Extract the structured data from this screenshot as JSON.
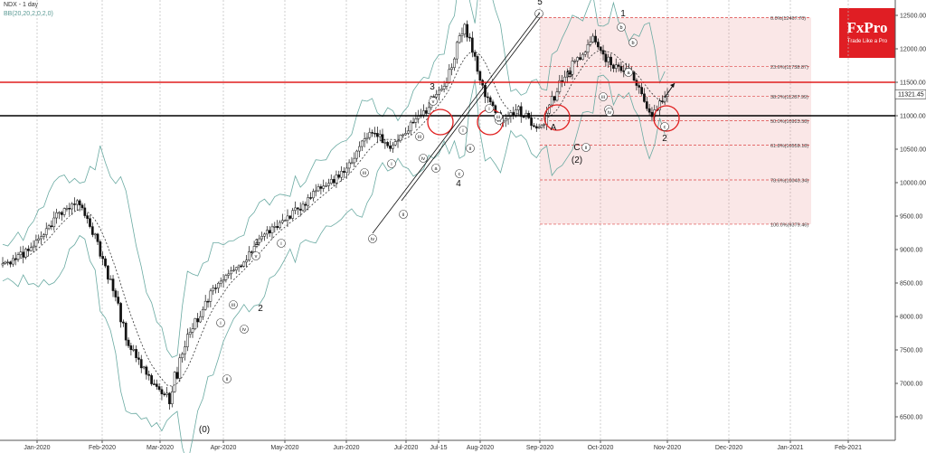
{
  "header": {
    "symbol_timeframe": "NDX - 1 day",
    "indicator": "BB(20,20,2,0,2,0)"
  },
  "logo": {
    "brand": "FxPro",
    "tagline": "Trade Like a Pro"
  },
  "chart_data": {
    "type": "candlestick",
    "ylim": [
      6300,
      12700
    ],
    "yticks": [
      "12500.00",
      "12000.00",
      "11500.00",
      "11000.00",
      "10500.00",
      "10000.00",
      "9500.00",
      "9000.00",
      "8500.00",
      "8000.00",
      "7500.00",
      "7000.00",
      "6500.00"
    ],
    "xticks": [
      "Jan-2020",
      "Feb-2020",
      "Mar-2020",
      "Apr-2020",
      "May-2020",
      "Jun-2020",
      "Jul-2020",
      "Jul-15",
      "Aug-2020",
      "Sep-2020",
      "Oct-2020",
      "Nov-2020",
      "Dec-2020",
      "Jan-2021",
      "Feb-2021"
    ],
    "current_price": "11321.45",
    "horizontal_levels": [
      {
        "name": "resistance",
        "value": 11500,
        "color": "#e01e1e"
      },
      {
        "name": "support",
        "value": 11000,
        "color": "#000000"
      }
    ],
    "fibonacci": [
      {
        "label": "0.0%(12467.70)",
        "value": 12467.7
      },
      {
        "label": "23.6%(11738.87)",
        "value": 11738.87
      },
      {
        "label": "38.2%(11287.99)",
        "value": 11287.99
      },
      {
        "label": "50.0%(10923.58)",
        "value": 10923.58
      },
      {
        "label": "61.8%(10559.18)",
        "value": 10559.18
      },
      {
        "label": "78.6%(10040.34)",
        "value": 10040.34
      },
      {
        "label": "100.0%(9379.46)",
        "value": 9379.46
      }
    ],
    "series": [
      {
        "name": "NDX",
        "points": [
          [
            "Jan-2020",
            8750
          ],
          [
            "Jan-2020",
            8900
          ],
          [
            "Feb-2020",
            9150
          ],
          [
            "Feb-2020",
            9550
          ],
          [
            "Feb-2020",
            9700
          ],
          [
            "Mar-2020",
            9250
          ],
          [
            "Mar-2020",
            8400
          ],
          [
            "Mar-2020",
            7500
          ],
          [
            "Mar-2020",
            7000
          ],
          [
            "Mar-2020",
            6800
          ],
          [
            "Apr-2020",
            7700
          ],
          [
            "Apr-2020",
            8200
          ],
          [
            "Apr-2020",
            8600
          ],
          [
            "May-2020",
            8800
          ],
          [
            "May-2020",
            9200
          ],
          [
            "May-2020",
            9400
          ],
          [
            "Jun-2020",
            9600
          ],
          [
            "Jun-2020",
            9900
          ],
          [
            "Jun-2020",
            10050
          ],
          [
            "Jul-2020",
            10400
          ],
          [
            "Jul-15",
            10800
          ],
          [
            "Jul-15",
            10500
          ],
          [
            "Aug-2020",
            10800
          ],
          [
            "Aug-2020",
            11100
          ],
          [
            "Aug-2020",
            11500
          ],
          [
            "Sep-2020",
            12400
          ],
          [
            "Sep-2020",
            11400
          ],
          [
            "Sep-2020",
            10900
          ],
          [
            "Sep-2020",
            11100
          ],
          [
            "Sep-2020",
            10800
          ],
          [
            "Oct-2020",
            11400
          ],
          [
            "Oct-2020",
            11800
          ],
          [
            "Oct-2020",
            12150
          ],
          [
            "Oct-2020",
            11750
          ],
          [
            "Oct-2020",
            11650
          ],
          [
            "Nov-2020",
            11000
          ],
          [
            "Nov-2020",
            11321
          ]
        ]
      }
    ],
    "wave_labels": [
      "5",
      "3",
      "1",
      "2",
      "4",
      "(0)",
      "A",
      "B",
      "C",
      "(2)",
      "1",
      "2"
    ],
    "subwave_labels": [
      "i",
      "ii",
      "iii",
      "iv",
      "v",
      "a",
      "b",
      "c"
    ]
  }
}
